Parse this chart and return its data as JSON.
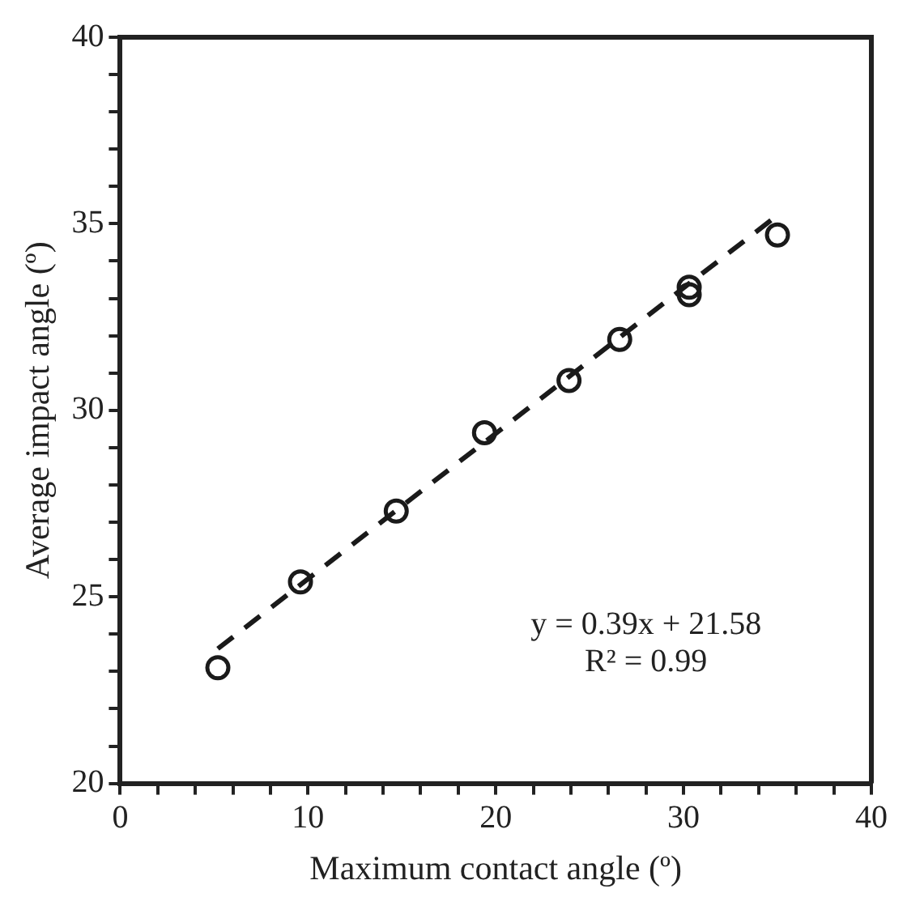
{
  "chart_data": {
    "type": "scatter",
    "xlabel": "Maximum contact angle (º)",
    "ylabel": "Average impact angle (º)",
    "xlim": [
      0,
      40
    ],
    "ylim": [
      20,
      40
    ],
    "xticks": [
      0,
      {
        "value": 2,
        "label": null
      },
      {
        "value": 4,
        "label": null
      },
      {
        "value": 6,
        "label": null
      },
      {
        "value": 8,
        "label": null
      },
      10,
      {
        "value": 12,
        "label": null
      },
      {
        "value": 14,
        "label": null
      },
      {
        "value": 16,
        "label": null
      },
      {
        "value": 18,
        "label": null
      },
      20,
      {
        "value": 22,
        "label": null
      },
      {
        "value": 24,
        "label": null
      },
      {
        "value": 26,
        "label": null
      },
      {
        "value": 28,
        "label": null
      },
      30,
      {
        "value": 32,
        "label": null
      },
      {
        "value": 34,
        "label": null
      },
      {
        "value": 36,
        "label": null
      },
      {
        "value": 38,
        "label": null
      },
      40
    ],
    "yticks": [
      20,
      {
        "value": 21,
        "label": null
      },
      {
        "value": 22,
        "label": null
      },
      {
        "value": 23,
        "label": null
      },
      {
        "value": 24,
        "label": null
      },
      25,
      {
        "value": 26,
        "label": null
      },
      {
        "value": 27,
        "label": null
      },
      {
        "value": 28,
        "label": null
      },
      {
        "value": 29,
        "label": null
      },
      30,
      {
        "value": 31,
        "label": null
      },
      {
        "value": 32,
        "label": null
      },
      {
        "value": 33,
        "label": null
      },
      {
        "value": 34,
        "label": null
      },
      35,
      {
        "value": 36,
        "label": null
      },
      {
        "value": 37,
        "label": null
      },
      {
        "value": 38,
        "label": null
      },
      {
        "value": 39,
        "label": null
      },
      40
    ],
    "grid": false,
    "legend": false,
    "series": [
      {
        "type": "scatter",
        "color": "#1a1a1a",
        "marker": "circle",
        "x": [
          5.2,
          9.6,
          14.7,
          19.4,
          23.9,
          26.6,
          30.3,
          30.3,
          35.0
        ],
        "values": [
          23.1,
          25.4,
          27.3,
          29.4,
          30.8,
          31.9,
          33.1,
          33.3,
          34.7
        ]
      },
      {
        "type": "line",
        "color": "#1a1a1a",
        "line_style": "dashed",
        "marker": "none",
        "x": [
          5.2,
          35.0
        ],
        "values": [
          23.61,
          35.23
        ]
      }
    ],
    "annotations": [
      "y = 0.39x + 21.58",
      "R² = 0.99"
    ]
  }
}
